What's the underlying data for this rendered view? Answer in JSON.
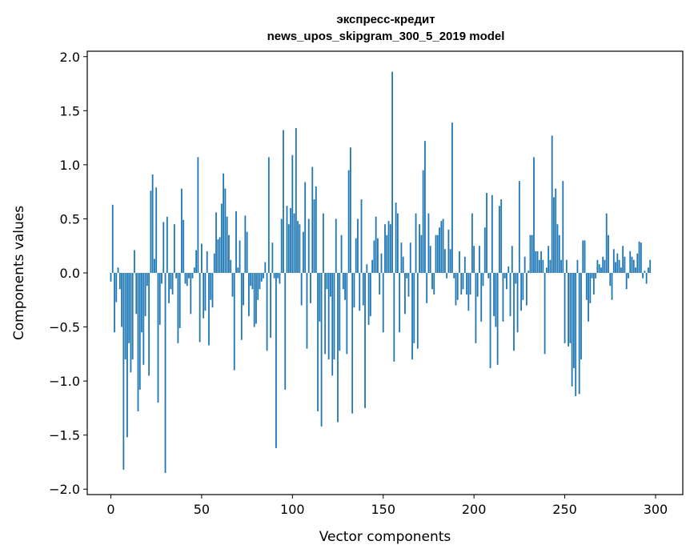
{
  "chart_data": {
    "type": "bar",
    "title_line1": "экспресс-кредит",
    "title_line2": "news_upos_skipgram_300_5_2019 model",
    "xlabel": "Vector components",
    "ylabel": "Components values",
    "xlim": [
      -13,
      315
    ],
    "ylim": [
      -2.05,
      2.05
    ],
    "xticks": [
      0,
      50,
      100,
      150,
      200,
      250,
      300
    ],
    "xtick_labels": [
      "0",
      "50",
      "100",
      "150",
      "200",
      "250",
      "300"
    ],
    "yticks": [
      -2.0,
      -1.5,
      -1.0,
      -0.5,
      0.0,
      0.5,
      1.0,
      1.5,
      2.0
    ],
    "ytick_labels": [
      "−2.0",
      "−1.5",
      "−1.0",
      "−0.5",
      "0.0",
      "0.5",
      "1.0",
      "1.5",
      "2.0"
    ],
    "bar_color": "#1f77b4",
    "values": [
      -0.08,
      0.63,
      -0.55,
      -0.27,
      0.05,
      -0.15,
      -0.5,
      -1.82,
      -0.8,
      -1.52,
      -0.65,
      -0.92,
      -0.8,
      0.21,
      -0.38,
      -1.28,
      -1.08,
      -0.55,
      -0.85,
      -0.4,
      -0.12,
      -0.95,
      0.76,
      0.91,
      0.13,
      0.79,
      -1.2,
      -0.48,
      -0.1,
      0.47,
      -1.85,
      0.52,
      -0.28,
      -0.15,
      -0.2,
      0.45,
      -0.05,
      -0.65,
      -0.51,
      0.78,
      0.49,
      -0.1,
      -0.12,
      -0.05,
      -0.38,
      -0.05,
      0.05,
      0.21,
      1.07,
      -0.64,
      0.27,
      -0.42,
      -0.35,
      0.2,
      -0.67,
      -0.25,
      -0.32,
      0.18,
      0.56,
      0.31,
      0.33,
      0.64,
      0.92,
      0.78,
      0.52,
      0.35,
      0.12,
      -0.22,
      -0.9,
      0.57,
      0.05,
      0.3,
      -0.62,
      -0.3,
      0.53,
      0.38,
      -0.4,
      -0.12,
      -0.15,
      -0.5,
      -0.47,
      -0.25,
      -0.15,
      -0.08,
      -0.05,
      0.1,
      -0.72,
      1.07,
      -0.6,
      0.28,
      -0.05,
      -1.62,
      -0.05,
      -0.1,
      0.5,
      1.32,
      -1.08,
      0.62,
      0.45,
      0.6,
      1.09,
      0.55,
      1.34,
      0.48,
      0.45,
      -0.3,
      0.38,
      0.84,
      -0.7,
      0.5,
      -0.28,
      0.98,
      0.68,
      0.8,
      -1.28,
      -0.45,
      -1.42,
      0.55,
      -0.75,
      -0.15,
      -0.8,
      -0.22,
      -0.95,
      -0.8,
      0.5,
      -1.38,
      -0.72,
      0.35,
      -0.15,
      -0.25,
      -0.75,
      0.95,
      1.16,
      -1.3,
      -0.32,
      0.32,
      0.5,
      -0.35,
      0.68,
      -0.3,
      -1.25,
      0.08,
      -0.48,
      -0.4,
      0.12,
      0.3,
      0.52,
      0.32,
      -0.2,
      0.18,
      -0.55,
      0.45,
      0.35,
      0.48,
      0.45,
      1.86,
      -0.82,
      0.65,
      0.55,
      -0.55,
      0.28,
      0.15,
      -0.38,
      -0.05,
      -0.22,
      0.28,
      -0.8,
      -0.65,
      0.55,
      -0.7,
      0.45,
      0.35,
      0.95,
      1.22,
      -0.28,
      0.55,
      0.25,
      -0.15,
      -0.2,
      0.35,
      0.35,
      0.42,
      0.48,
      0.5,
      0.22,
      -0.05,
      0.4,
      0.22,
      1.39,
      -0.05,
      -0.3,
      -0.25,
      0.2,
      -0.2,
      -0.15,
      0.15,
      -0.2,
      -0.35,
      -0.2,
      0.55,
      0.25,
      -0.65,
      -0.22,
      0.25,
      -0.45,
      -0.12,
      0.42,
      0.74,
      -0.05,
      -0.88,
      0.72,
      -0.4,
      -0.5,
      -0.85,
      0.62,
      0.68,
      -0.45,
      -0.05,
      -0.15,
      0.06,
      -0.4,
      0.25,
      -0.72,
      -0.1,
      -0.55,
      0.85,
      -0.35,
      -0.25,
      0.15,
      -0.3,
      0.02,
      0.35,
      0.35,
      1.07,
      0.2,
      0.2,
      0.12,
      0.2,
      0.12,
      -0.75,
      0.05,
      0.25,
      0.12,
      1.27,
      0.7,
      0.78,
      0.45,
      0.35,
      0.12,
      0.85,
      -0.65,
      0.12,
      -0.68,
      -0.65,
      -1.05,
      -0.88,
      -1.14,
      0.12,
      -1.12,
      -0.8,
      0.3,
      0.3,
      -0.25,
      -0.45,
      -0.28,
      -0.05,
      -0.2,
      -0.05,
      0.12,
      0.08,
      0.05,
      0.15,
      0.12,
      0.55,
      0.35,
      -0.12,
      -0.25,
      0.22,
      0.1,
      0.18,
      0.12,
      0.05,
      0.25,
      0.15,
      -0.15,
      -0.05,
      0.2,
      0.15,
      0.12,
      0.05,
      0.18,
      0.29,
      0.28,
      -0.05,
      0.02,
      -0.1,
      0.05,
      0.12
    ]
  }
}
